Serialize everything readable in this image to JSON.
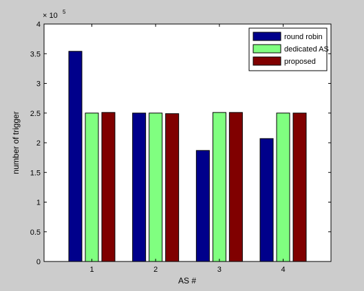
{
  "chart_data": {
    "type": "bar",
    "title": "",
    "xlabel": "AS #",
    "ylabel": "number of trigger",
    "y_exponent_label": "× 10",
    "y_exponent_power": "5",
    "categories": [
      "1",
      "2",
      "3",
      "4"
    ],
    "ylim": [
      0,
      4
    ],
    "yticks": [
      "0",
      "0.5",
      "1",
      "1.5",
      "2",
      "2.5",
      "3",
      "3.5",
      "4"
    ],
    "ytick_values": [
      0,
      0.5,
      1,
      1.5,
      2,
      2.5,
      3,
      3.5,
      4
    ],
    "grid": false,
    "legend_position": "top-right",
    "series": [
      {
        "name": "round robin",
        "color": "#00008b",
        "values": [
          3.54,
          2.5,
          1.87,
          2.07
        ]
      },
      {
        "name": "dedicated AS",
        "color": "#80ff80",
        "values": [
          2.5,
          2.5,
          2.51,
          2.5
        ]
      },
      {
        "name": "proposed",
        "color": "#800000",
        "values": [
          2.51,
          2.49,
          2.51,
          2.5
        ]
      }
    ]
  },
  "colors": {
    "figure_background": "#cccccc",
    "axes_background": "#ffffff",
    "axis_line": "#000000"
  }
}
